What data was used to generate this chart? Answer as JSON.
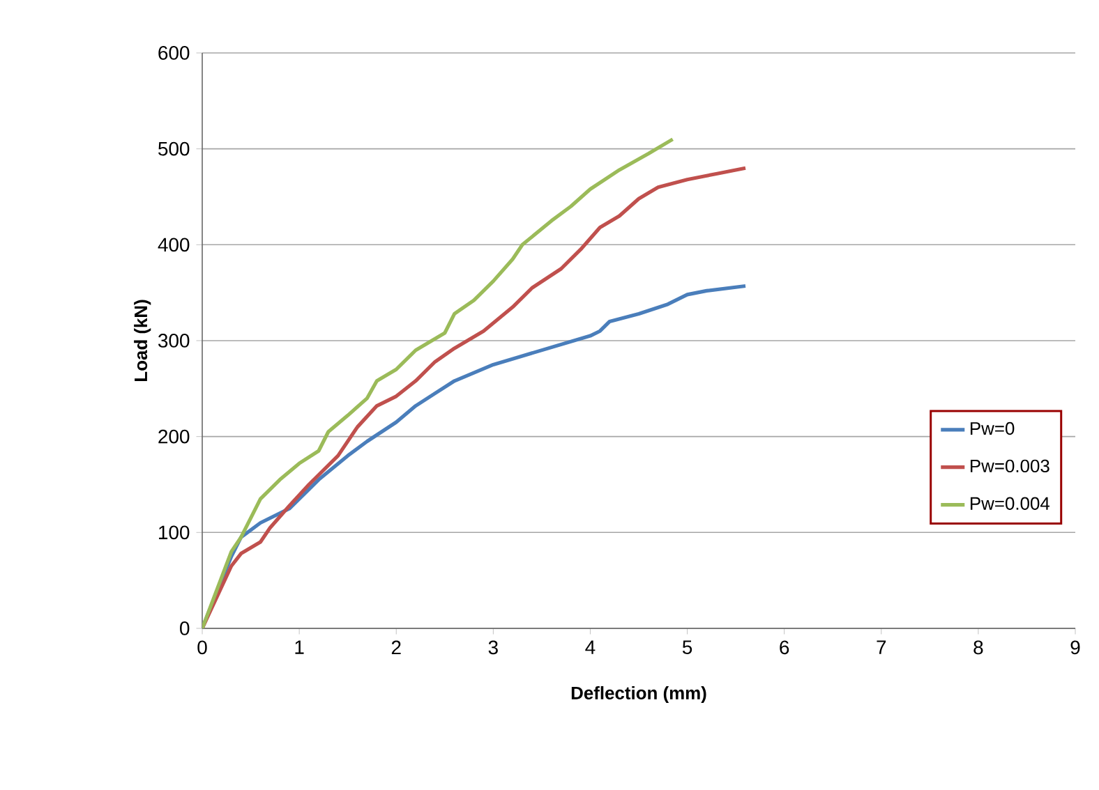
{
  "chart_data": {
    "type": "line",
    "xlabel": "Deflection (mm)",
    "ylabel": "Load (kN)",
    "xlim": [
      0,
      9
    ],
    "xticks": [
      0,
      1,
      2,
      3,
      4,
      5,
      6,
      7,
      8,
      9
    ],
    "ylim": [
      0,
      600
    ],
    "yticks": [
      0,
      100,
      200,
      300,
      400,
      500,
      600
    ],
    "grid": "y",
    "legend": "right",
    "line_style": "solid",
    "marker": "none",
    "series": [
      {
        "name": "Pw=0",
        "color": "#4a7ebb",
        "x": [
          0,
          0.3,
          0.4,
          0.6,
          0.9,
          1.2,
          1.5,
          1.7,
          2,
          2.2,
          2.4,
          2.6,
          3,
          3.5,
          4,
          4.1,
          4.2,
          4.5,
          4.8,
          5,
          5.2,
          5.6
        ],
        "values": [
          0,
          75,
          95,
          110,
          125,
          155,
          180,
          195,
          215,
          232,
          245,
          258,
          275,
          290,
          305,
          310,
          320,
          328,
          338,
          348,
          352,
          357
        ]
      },
      {
        "name": "Pw=0.003",
        "color": "#c0504d",
        "x": [
          0,
          0.3,
          0.4,
          0.6,
          0.7,
          0.9,
          1.1,
          1.4,
          1.6,
          1.8,
          2,
          2.2,
          2.4,
          2.6,
          2.9,
          3.2,
          3.4,
          3.7,
          3.9,
          4.1,
          4.3,
          4.5,
          4.7,
          5,
          5.3,
          5.6
        ],
        "values": [
          0,
          65,
          78,
          90,
          105,
          128,
          150,
          180,
          210,
          232,
          242,
          258,
          278,
          292,
          310,
          335,
          355,
          375,
          395,
          418,
          430,
          448,
          460,
          468,
          474,
          480
        ]
      },
      {
        "name": "Pw=0.004",
        "color": "#9bbb59",
        "x": [
          0,
          0.3,
          0.4,
          0.6,
          0.8,
          1,
          1.2,
          1.3,
          1.5,
          1.7,
          1.8,
          2,
          2.2,
          2.5,
          2.6,
          2.8,
          3,
          3.2,
          3.3,
          3.6,
          3.8,
          4,
          4.3,
          4.6,
          4.85
        ],
        "values": [
          0,
          80,
          95,
          135,
          155,
          172,
          185,
          205,
          222,
          240,
          258,
          270,
          290,
          308,
          328,
          342,
          362,
          385,
          400,
          425,
          440,
          458,
          478,
          495,
          510
        ]
      }
    ]
  }
}
